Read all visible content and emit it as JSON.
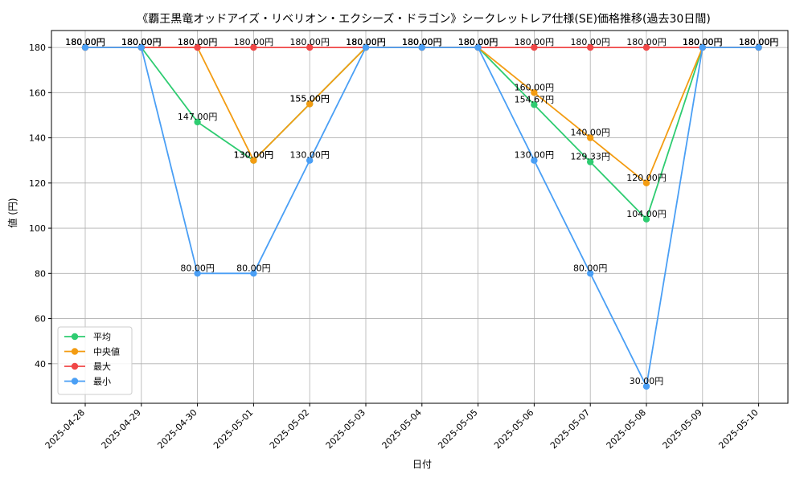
{
  "chart_data": {
    "type": "line",
    "title": "《覇王黒竜オッドアイズ・リベリオン・エクシーズ・ドラゴン》シークレットレア仕様(SE)価格推移(過去30日間)",
    "xlabel": "日付",
    "ylabel": "値 (円)",
    "categories": [
      "2025-04-28",
      "2025-04-29",
      "2025-04-30",
      "2025-05-01",
      "2025-05-02",
      "2025-05-03",
      "2025-05-04",
      "2025-05-05",
      "2025-05-06",
      "2025-05-07",
      "2025-05-08",
      "2025-05-09",
      "2025-05-10"
    ],
    "ylim": [
      22.5,
      187.5
    ],
    "yticks": [
      40,
      60,
      80,
      100,
      120,
      140,
      160,
      180
    ],
    "grid": true,
    "legend_position": "lower-left",
    "value_suffix": "円",
    "series": [
      {
        "name": "平均",
        "color": "#2ecc71",
        "values": [
          180,
          180,
          147,
          130,
          155,
          180,
          180,
          180,
          154.67,
          129.33,
          104,
          180,
          180
        ]
      },
      {
        "name": "中央値",
        "color": "#f39c12",
        "values": [
          180,
          180,
          180,
          130,
          155,
          180,
          180,
          180,
          160,
          140,
          120,
          180,
          180
        ]
      },
      {
        "name": "最大",
        "color": "#f04747",
        "values": [
          180,
          180,
          180,
          180,
          180,
          180,
          180,
          180,
          180,
          180,
          180,
          180,
          180
        ]
      },
      {
        "name": "最小",
        "color": "#4a9ff5",
        "values": [
          180,
          180,
          80,
          80,
          130,
          180,
          180,
          180,
          130,
          80,
          30,
          180,
          180
        ]
      }
    ]
  }
}
